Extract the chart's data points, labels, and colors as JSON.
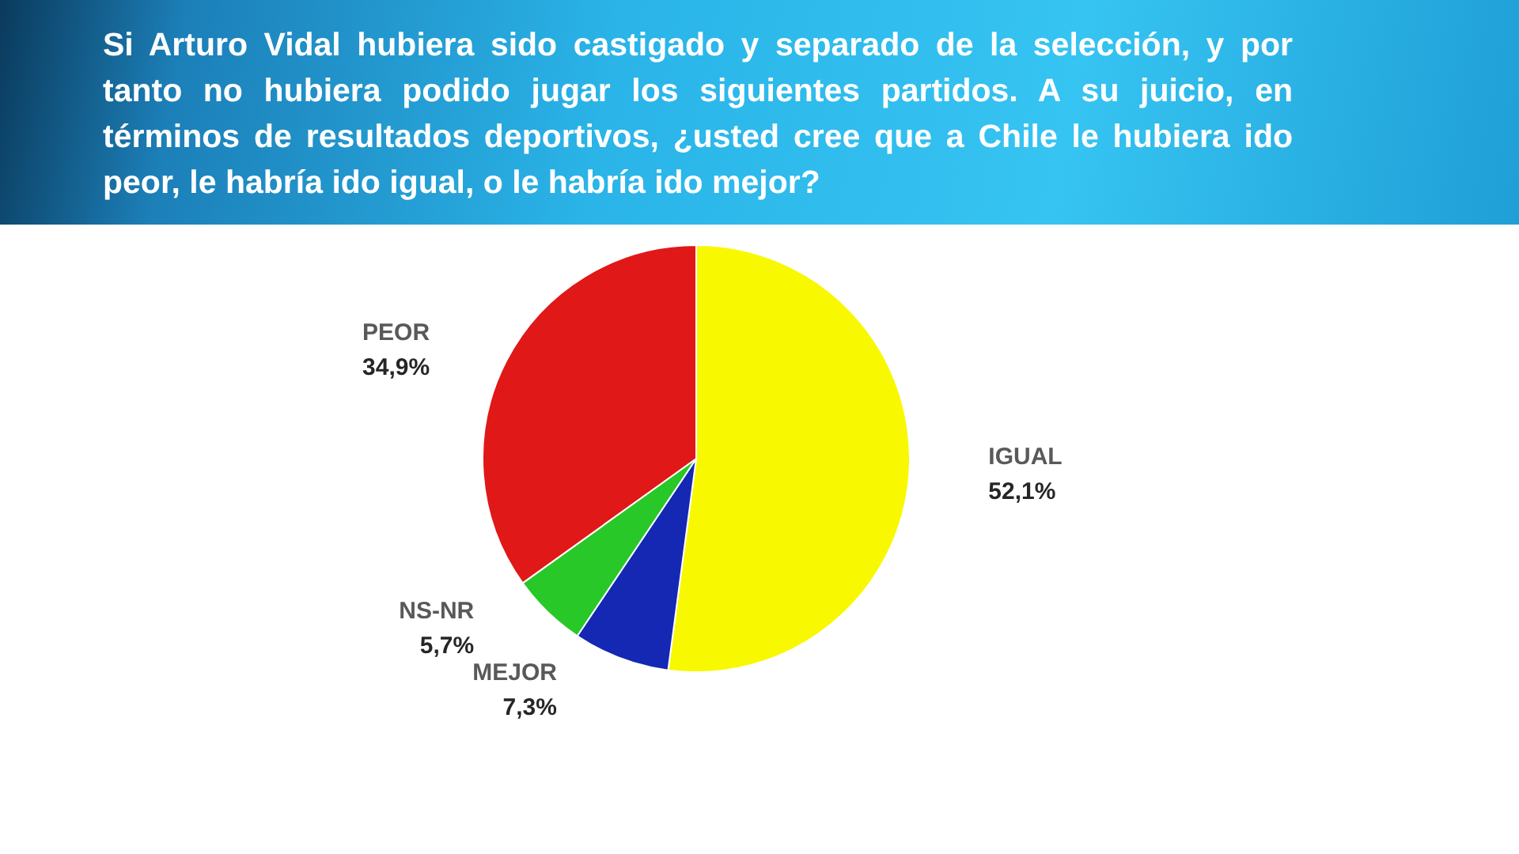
{
  "chart_data": {
    "type": "pie",
    "title": "Si Arturo Vidal hubiera sido castigado y separado de la selección, y por tanto no hubiera podido jugar los siguientes partidos. A su juicio, en términos de resultados deportivos, ¿usted cree que a Chile le hubiera ido peor, le habría ido igual, o le habría ido mejor?",
    "categories": [
      "IGUAL",
      "MEJOR",
      "NS-NR",
      "PEOR"
    ],
    "values": [
      52.1,
      7.3,
      5.7,
      34.9
    ],
    "value_labels": [
      "52,1%",
      "7,3%",
      "5,7%",
      "34,9%"
    ],
    "colors": [
      "#f8f800",
      "#1428b4",
      "#28c828",
      "#e01818"
    ],
    "legend": false
  }
}
